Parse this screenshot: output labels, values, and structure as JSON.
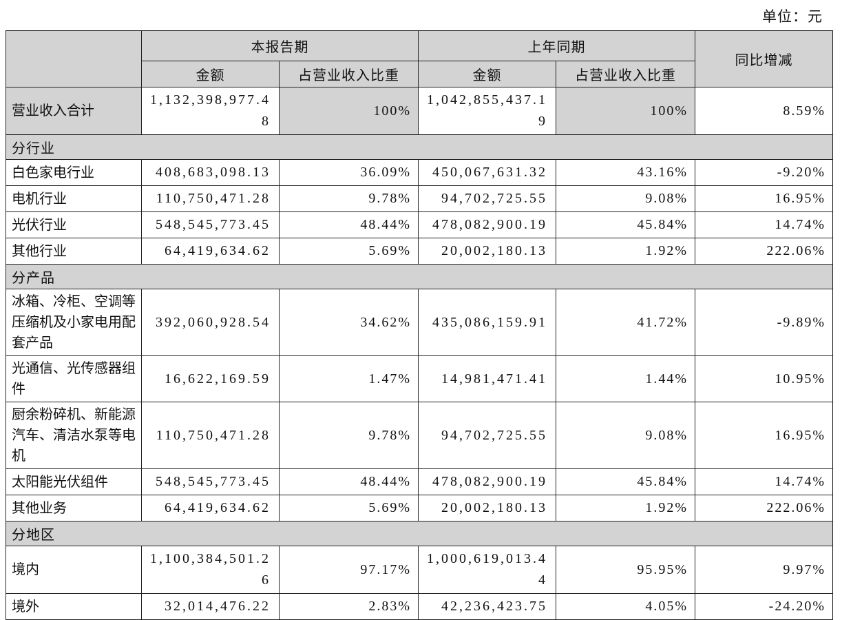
{
  "unit_label": "单位：元",
  "table": {
    "header": {
      "period_current": "本报告期",
      "period_prior": "上年同期",
      "col_amount_current": "金额",
      "col_ratio_current": "占营业收入比重",
      "col_amount_prior": "金额",
      "col_ratio_prior": "占营业收入比重",
      "col_yoy": "同比增减"
    },
    "rows": [
      {
        "type": "total",
        "label": "营业收入合计",
        "cur_amount": "1,132,398,977.48",
        "cur_ratio": "100%",
        "prev_amount": "1,042,855,437.19",
        "prev_ratio": "100%",
        "yoy": "8.59%"
      },
      {
        "type": "section",
        "label": "分行业"
      },
      {
        "type": "data",
        "label": "白色家电行业",
        "cur_amount": "408,683,098.13",
        "cur_ratio": "36.09%",
        "prev_amount": "450,067,631.32",
        "prev_ratio": "43.16%",
        "yoy": "-9.20%"
      },
      {
        "type": "data",
        "label": "电机行业",
        "cur_amount": "110,750,471.28",
        "cur_ratio": "9.78%",
        "prev_amount": "94,702,725.55",
        "prev_ratio": "9.08%",
        "yoy": "16.95%"
      },
      {
        "type": "data",
        "label": "光伏行业",
        "cur_amount": "548,545,773.45",
        "cur_ratio": "48.44%",
        "prev_amount": "478,082,900.19",
        "prev_ratio": "45.84%",
        "yoy": "14.74%"
      },
      {
        "type": "data",
        "label": "其他行业",
        "cur_amount": "64,419,634.62",
        "cur_ratio": "5.69%",
        "prev_amount": "20,002,180.13",
        "prev_ratio": "1.92%",
        "yoy": "222.06%"
      },
      {
        "type": "section",
        "label": "分产品"
      },
      {
        "type": "data",
        "label": "冰箱、冷柜、空调等压缩机及小家电用配套产品",
        "cur_amount": "392,060,928.54",
        "cur_ratio": "34.62%",
        "prev_amount": "435,086,159.91",
        "prev_ratio": "41.72%",
        "yoy": "-9.89%"
      },
      {
        "type": "data",
        "label": "光通信、光传感器组件",
        "cur_amount": "16,622,169.59",
        "cur_ratio": "1.47%",
        "prev_amount": "14,981,471.41",
        "prev_ratio": "1.44%",
        "yoy": "10.95%"
      },
      {
        "type": "data",
        "label": "厨余粉碎机、新能源汽车、清洁水泵等电机",
        "cur_amount": "110,750,471.28",
        "cur_ratio": "9.78%",
        "prev_amount": "94,702,725.55",
        "prev_ratio": "9.08%",
        "yoy": "16.95%"
      },
      {
        "type": "data",
        "label": "太阳能光伏组件",
        "cur_amount": "548,545,773.45",
        "cur_ratio": "48.44%",
        "prev_amount": "478,082,900.19",
        "prev_ratio": "45.84%",
        "yoy": "14.74%"
      },
      {
        "type": "data",
        "label": "其他业务",
        "cur_amount": "64,419,634.62",
        "cur_ratio": "5.69%",
        "prev_amount": "20,002,180.13",
        "prev_ratio": "1.92%",
        "yoy": "222.06%"
      },
      {
        "type": "section",
        "label": "分地区"
      },
      {
        "type": "data2line",
        "label": "境内",
        "cur_amount": "1,100,384,501.26",
        "cur_ratio": "97.17%",
        "prev_amount": "1,000,619,013.44",
        "prev_ratio": "95.95%",
        "yoy": "9.97%"
      },
      {
        "type": "data",
        "label": "境外",
        "cur_amount": "32,014,476.22",
        "cur_ratio": "2.83%",
        "prev_amount": "42,236,423.75",
        "prev_ratio": "4.05%",
        "yoy": "-24.20%"
      }
    ]
  }
}
